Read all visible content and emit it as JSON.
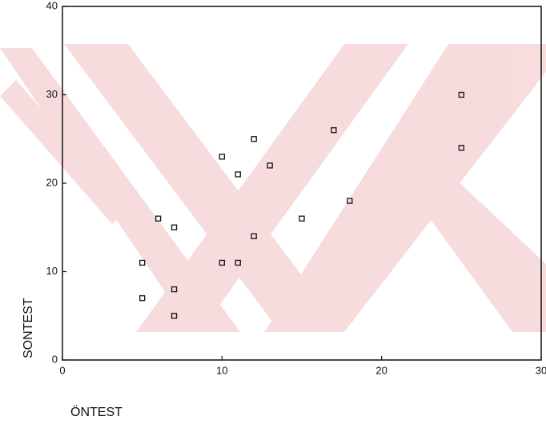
{
  "chart_data": {
    "type": "scatter",
    "x_label": "ÖNTEST",
    "y_label": "SONTEST",
    "xlim": [
      0,
      30
    ],
    "ylim": [
      0,
      40
    ],
    "xticks": [
      0,
      10,
      20,
      30
    ],
    "yticks": [
      0,
      10,
      20,
      30,
      40
    ],
    "color": "#222222",
    "x": [
      25,
      25,
      17,
      12,
      10,
      11,
      13,
      18,
      15,
      6,
      7,
      12,
      5,
      10,
      11,
      7,
      5,
      7
    ],
    "values": [
      30,
      24,
      26,
      25,
      23,
      21,
      22,
      18,
      16,
      16,
      15,
      14,
      11,
      11,
      11,
      8,
      7,
      5
    ]
  }
}
